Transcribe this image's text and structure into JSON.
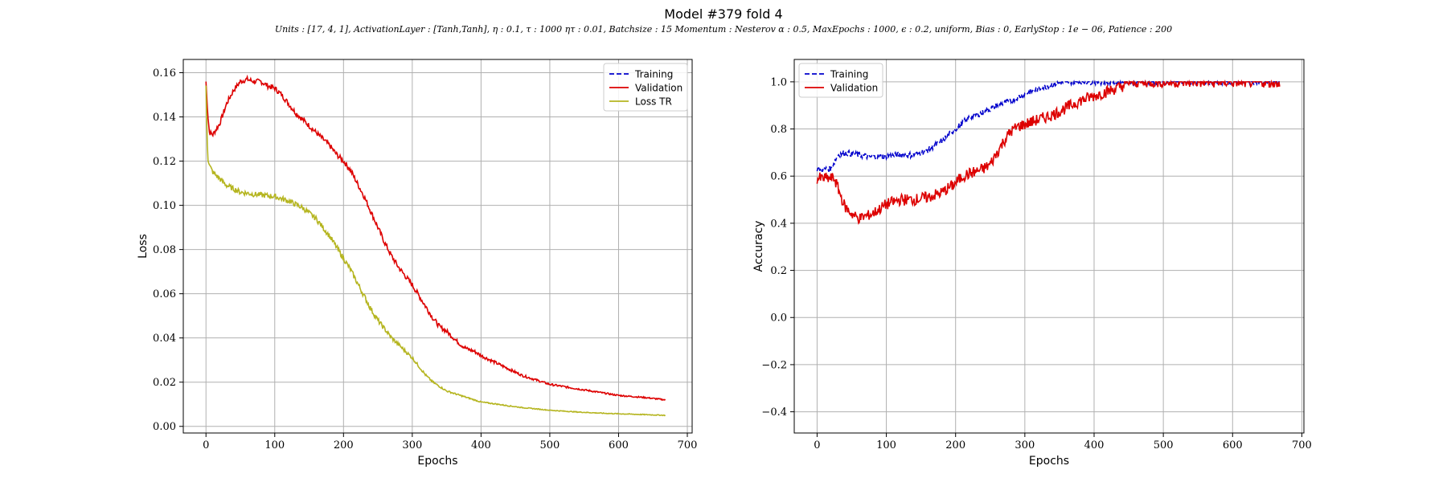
{
  "title": "Model #379 fold 4",
  "subtitle": "Units : [17, 4, 1], ActivationLayer : [Tanh,Tanh], η : 0.1, τ : 1000 ητ : 0.01, Batchsize : 15 Momentum : Nesterov α : 0.5, MaxEpochs : 1000, ϵ : 0.2, uniform, Bias : 0, EarlyStop : 1e − 06, Patience : 200",
  "chart_data": [
    {
      "type": "line",
      "xlabel": "Epochs",
      "ylabel": "Loss",
      "xlim": [
        -33,
        707
      ],
      "ylim": [
        -0.003,
        0.166
      ],
      "xticks": [
        "0",
        "100",
        "200",
        "300",
        "400",
        "500",
        "600",
        "700"
      ],
      "yticks": [
        "0.00",
        "0.02",
        "0.04",
        "0.06",
        "0.08",
        "0.10",
        "0.12",
        "0.14",
        "0.16"
      ],
      "grid": true,
      "legend_position": "top-right",
      "series": [
        {
          "name": "Training",
          "color": "#0000cc",
          "dash": "dashed",
          "x": [],
          "y": []
        },
        {
          "name": "Validation",
          "color": "#dd0000",
          "dash": "solid",
          "noise": 0.0012,
          "x": [
            0,
            1,
            3,
            5,
            10,
            20,
            30,
            40,
            50,
            60,
            70,
            80,
            90,
            100,
            110,
            120,
            130,
            140,
            150,
            160,
            170,
            180,
            190,
            200,
            210,
            220,
            230,
            240,
            250,
            260,
            270,
            280,
            290,
            300,
            310,
            320,
            330,
            340,
            350,
            360,
            370,
            380,
            390,
            400,
            420,
            440,
            460,
            480,
            500,
            520,
            540,
            560,
            580,
            600,
            620,
            640,
            668
          ],
          "y": [
            0.156,
            0.15,
            0.14,
            0.133,
            0.132,
            0.137,
            0.146,
            0.152,
            0.156,
            0.157,
            0.156,
            0.156,
            0.154,
            0.153,
            0.15,
            0.146,
            0.142,
            0.139,
            0.136,
            0.133,
            0.13,
            0.127,
            0.123,
            0.12,
            0.116,
            0.11,
            0.104,
            0.097,
            0.09,
            0.083,
            0.077,
            0.072,
            0.068,
            0.064,
            0.059,
            0.054,
            0.049,
            0.045,
            0.043,
            0.04,
            0.037,
            0.035,
            0.034,
            0.032,
            0.029,
            0.026,
            0.023,
            0.021,
            0.019,
            0.018,
            0.017,
            0.016,
            0.015,
            0.014,
            0.0135,
            0.013,
            0.012
          ]
        },
        {
          "name": "Loss TR",
          "color": "#b5b520",
          "dash": "solid",
          "noise": 0.0012,
          "x": [
            0,
            1,
            2,
            3,
            5,
            10,
            20,
            30,
            50,
            70,
            100,
            120,
            140,
            160,
            170,
            180,
            190,
            200,
            210,
            220,
            230,
            240,
            250,
            260,
            270,
            280,
            290,
            300,
            310,
            320,
            330,
            340,
            350,
            360,
            370,
            380,
            390,
            400,
            420,
            440,
            460,
            480,
            500,
            520,
            540,
            560,
            580,
            600,
            620,
            640,
            668
          ],
          "y": [
            0.154,
            0.14,
            0.128,
            0.121,
            0.118,
            0.115,
            0.112,
            0.109,
            0.106,
            0.105,
            0.104,
            0.102,
            0.099,
            0.094,
            0.09,
            0.086,
            0.081,
            0.076,
            0.071,
            0.065,
            0.059,
            0.053,
            0.048,
            0.044,
            0.04,
            0.037,
            0.034,
            0.031,
            0.027,
            0.023,
            0.02,
            0.018,
            0.016,
            0.015,
            0.014,
            0.013,
            0.012,
            0.011,
            0.0102,
            0.0093,
            0.0085,
            0.0079,
            0.0073,
            0.0069,
            0.0065,
            0.0062,
            0.0059,
            0.0057,
            0.0055,
            0.0053,
            0.005
          ]
        }
      ]
    },
    {
      "type": "line",
      "xlabel": "Epochs",
      "ylabel": "Accuracy",
      "xlim": [
        -33,
        703
      ],
      "ylim": [
        -0.49,
        1.095
      ],
      "xticks": [
        "0",
        "100",
        "200",
        "300",
        "400",
        "500",
        "600",
        "700"
      ],
      "yticks": [
        "−0.4",
        "−0.2",
        "0.0",
        "0.2",
        "0.4",
        "0.6",
        "0.8",
        "1.0"
      ],
      "grid": true,
      "legend_position": "top-left",
      "series": [
        {
          "name": "Training",
          "color": "#0000cc",
          "dash": "dashed",
          "noise": 0.012,
          "x": [
            0,
            20,
            25,
            30,
            40,
            60,
            80,
            100,
            120,
            140,
            160,
            180,
            200,
            220,
            240,
            260,
            280,
            300,
            320,
            340,
            360,
            380,
            400,
            420,
            450,
            500,
            668
          ],
          "y": [
            0.63,
            0.63,
            0.66,
            0.69,
            0.7,
            0.69,
            0.68,
            0.685,
            0.69,
            0.69,
            0.71,
            0.75,
            0.8,
            0.85,
            0.87,
            0.9,
            0.92,
            0.95,
            0.97,
            0.99,
            1.0,
            1.0,
            1.0,
            1.0,
            1.0,
            1.0,
            1.0
          ]
        },
        {
          "name": "Validation",
          "color": "#dd0000",
          "dash": "solid",
          "noise": 0.025,
          "x": [
            0,
            25,
            30,
            40,
            50,
            60,
            70,
            80,
            100,
            120,
            140,
            160,
            180,
            190,
            200,
            210,
            220,
            230,
            240,
            250,
            260,
            270,
            280,
            290,
            300,
            320,
            340,
            360,
            380,
            400,
            420,
            440,
            450,
            500,
            668
          ],
          "y": [
            0.59,
            0.59,
            0.55,
            0.47,
            0.44,
            0.42,
            0.43,
            0.44,
            0.48,
            0.5,
            0.5,
            0.51,
            0.53,
            0.55,
            0.57,
            0.6,
            0.61,
            0.62,
            0.63,
            0.65,
            0.7,
            0.75,
            0.79,
            0.81,
            0.82,
            0.84,
            0.86,
            0.89,
            0.92,
            0.94,
            0.96,
            0.98,
            1.0,
            1.0,
            1.0
          ]
        }
      ]
    }
  ]
}
